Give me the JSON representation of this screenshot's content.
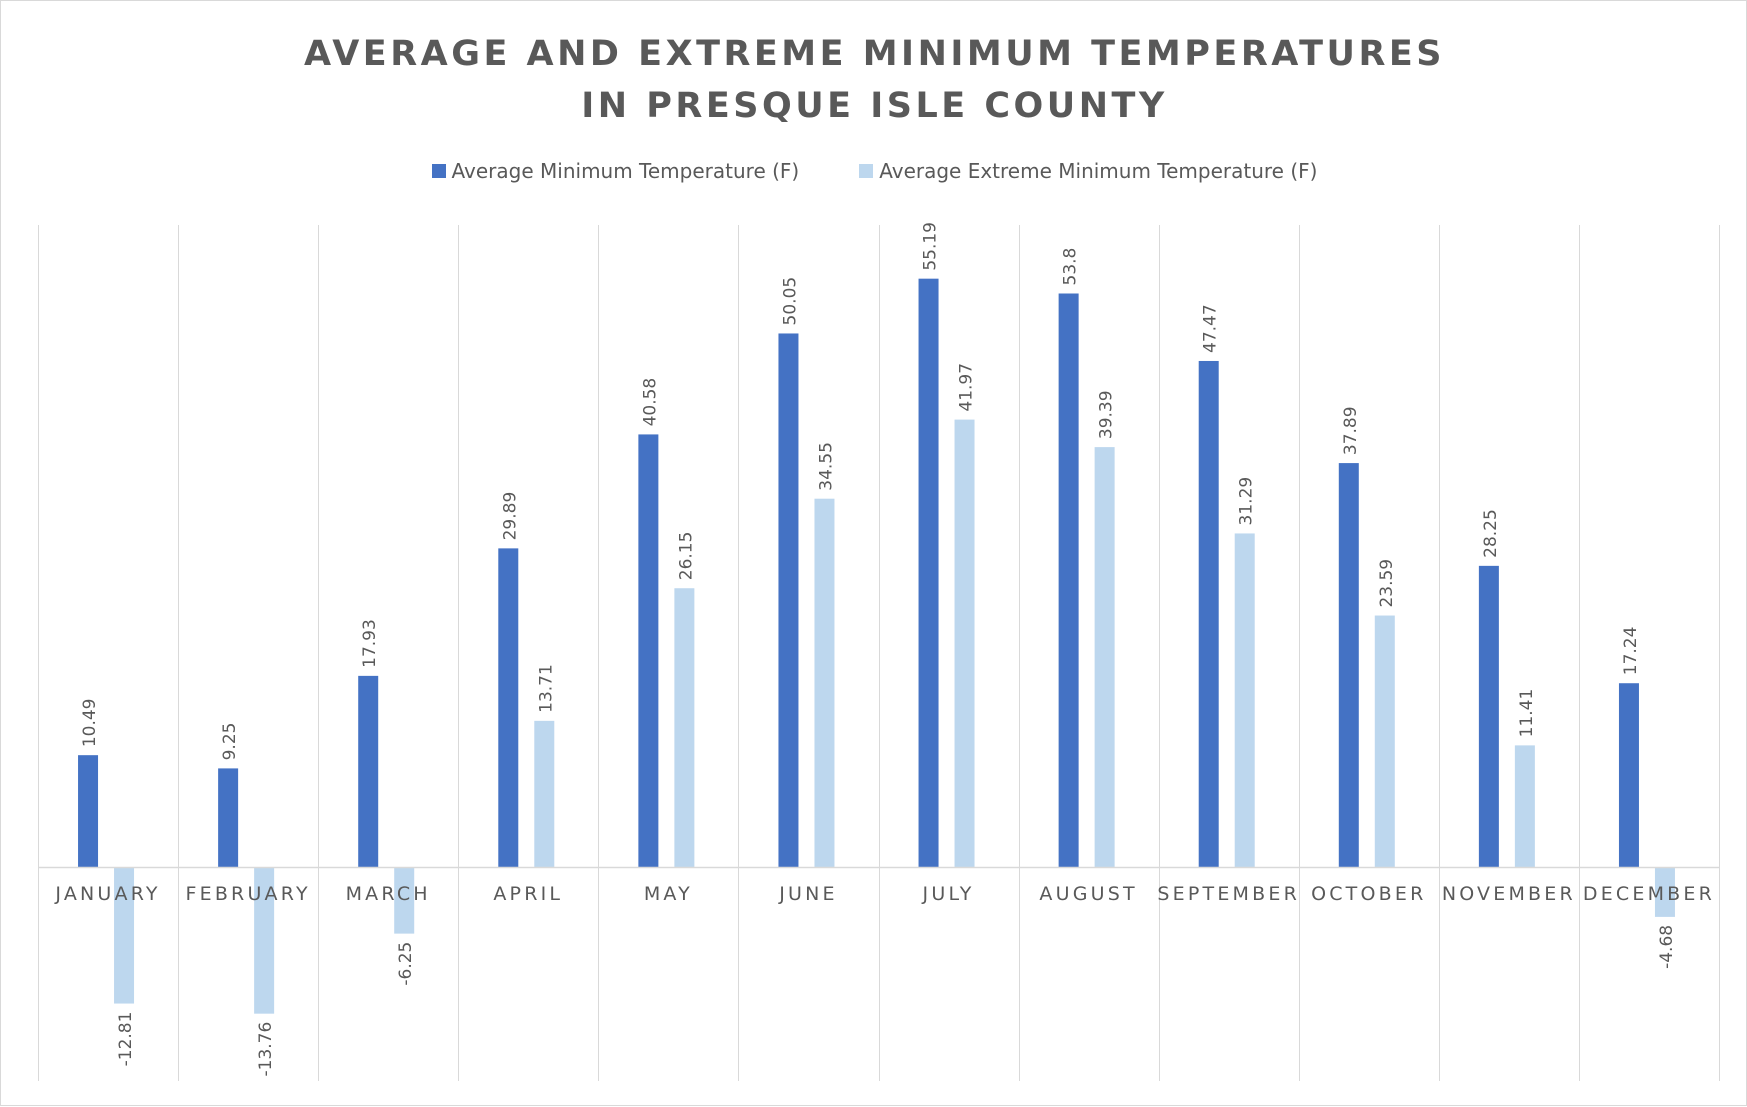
{
  "chart_data": {
    "type": "bar",
    "title_lines": [
      "AVERAGE AND EXTREME MINIMUM TEMPERATURES",
      "IN PRESQUE ISLE COUNTY"
    ],
    "categories": [
      "JANUARY",
      "FEBRUARY",
      "MARCH",
      "APRIL",
      "MAY",
      "JUNE",
      "JULY",
      "AUGUST",
      "SEPTEMBER",
      "OCTOBER",
      "NOVEMBER",
      "DECEMBER"
    ],
    "series": [
      {
        "name": "Average Minimum Temperature (F)",
        "color": "#4472c4",
        "values": [
          10.49,
          9.25,
          17.93,
          29.89,
          40.58,
          50.05,
          55.19,
          53.8,
          47.47,
          37.89,
          28.25,
          17.24
        ],
        "labels": [
          "10.49",
          "9.25",
          "17.93",
          "29.89",
          "40.58",
          "50.05",
          "55.19",
          "53.8",
          "47.47",
          "37.89",
          "28.25",
          "17.24"
        ]
      },
      {
        "name": "Average Extreme Minimum Temperature (F)",
        "color": "#bdd7ee",
        "values": [
          -12.81,
          -13.76,
          -6.25,
          13.71,
          26.15,
          34.55,
          41.97,
          39.39,
          31.29,
          23.59,
          11.41,
          -4.68
        ],
        "labels": [
          "-12.81",
          "-13.76",
          "-6.25",
          "13.71",
          "26.15",
          "34.55",
          "41.97",
          "39.39",
          "31.29",
          "23.59",
          "11.41",
          "-4.68"
        ]
      }
    ],
    "xlabel": "",
    "ylabel": "",
    "ylim": [
      -20,
      60
    ],
    "grid": "vertical category separators",
    "legend": "top-center",
    "data_labels": "rotated vertical"
  }
}
